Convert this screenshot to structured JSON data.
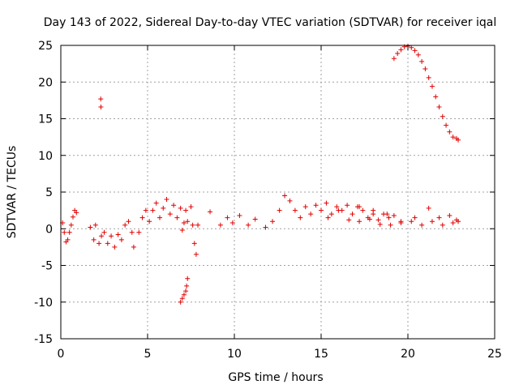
{
  "chart_data": {
    "type": "scatter",
    "title": "Day 143 of 2022, Sidereal Day-to-day VTEC variation (SDTVAR) for receiver iqal",
    "xlabel": "GPS time / hours",
    "ylabel": "SDTVAR / TECUs",
    "xlim": [
      0,
      25
    ],
    "ylim": [
      -15,
      25
    ],
    "xticks": [
      0,
      5,
      10,
      15,
      20,
      25
    ],
    "yticks": [
      -15,
      -10,
      -5,
      0,
      5,
      10,
      15,
      20,
      25
    ],
    "grid": true,
    "marker": "plus",
    "color": "#e00000",
    "series": [
      {
        "name": "SDTVAR",
        "x": [
          0.1,
          0.2,
          0.3,
          0.4,
          0.5,
          0.6,
          0.7,
          0.8,
          0.9,
          1.7,
          1.9,
          2.0,
          2.2,
          2.3,
          2.31,
          2.34,
          2.5,
          2.7,
          2.9,
          3.1,
          3.3,
          3.5,
          3.7,
          3.9,
          4.1,
          4.2,
          4.5,
          4.7,
          4.9,
          5.1,
          5.3,
          5.5,
          5.7,
          5.9,
          6.1,
          6.3,
          6.5,
          6.7,
          6.9,
          7.0,
          7.1,
          7.2,
          7.3,
          7.5,
          7.6,
          7.7,
          7.8,
          7.9,
          6.9,
          7.0,
          7.1,
          7.2,
          7.25,
          7.3,
          8.6,
          9.2,
          9.6,
          9.9,
          10.3,
          10.8,
          11.2,
          11.8,
          12.2,
          12.6,
          12.9,
          13.2,
          13.5,
          13.8,
          14.1,
          14.4,
          14.7,
          15.0,
          15.3,
          15.6,
          15.9,
          16.2,
          16.5,
          16.8,
          17.1,
          17.4,
          17.7,
          18.0,
          18.3,
          18.6,
          18.9,
          19.2,
          15.4,
          16.0,
          16.6,
          17.2,
          17.8,
          18.4,
          19.0,
          19.6,
          20.2,
          20.8,
          21.4,
          22.0,
          22.6,
          22.9,
          17.2,
          18.0,
          18.8,
          19.6,
          20.4,
          21.2,
          21.8,
          22.4,
          22.8,
          19.2,
          19.4,
          19.6,
          19.8,
          20.0,
          20.2,
          20.4,
          20.6,
          20.8,
          21.0,
          21.2,
          21.4,
          21.6,
          21.8,
          22.0,
          22.2,
          22.4,
          22.6,
          22.8,
          22.9
        ],
        "y": [
          0.8,
          -0.5,
          -1.8,
          -1.5,
          -0.5,
          0.5,
          1.6,
          2.5,
          2.2,
          0.2,
          -1.5,
          0.5,
          -2.0,
          17.7,
          16.6,
          -1.0,
          -0.5,
          -2.0,
          -1.0,
          -2.5,
          -0.8,
          -1.5,
          0.5,
          1.0,
          -0.5,
          -2.5,
          -0.5,
          1.5,
          2.5,
          1.0,
          2.5,
          3.5,
          1.5,
          2.8,
          4.0,
          2.0,
          3.2,
          1.5,
          2.8,
          -0.2,
          0.8,
          2.5,
          1.0,
          3.0,
          0.5,
          -2.0,
          -3.5,
          0.5,
          -10.0,
          -9.5,
          -9.0,
          -8.5,
          -7.8,
          -6.8,
          2.3,
          0.5,
          1.5,
          0.8,
          1.8,
          0.5,
          1.3,
          0.2,
          1.0,
          2.5,
          4.5,
          3.8,
          2.5,
          1.5,
          3.0,
          2.0,
          3.2,
          2.5,
          3.5,
          2.0,
          3.0,
          2.5,
          3.2,
          2.0,
          3.0,
          2.5,
          1.5,
          2.0,
          1.2,
          2.0,
          1.5,
          1.8,
          1.5,
          2.5,
          1.2,
          1.0,
          1.3,
          0.6,
          0.5,
          0.8,
          1.0,
          0.5,
          1.0,
          0.5,
          0.8,
          1.0,
          3.0,
          2.5,
          2.0,
          1.0,
          1.5,
          2.8,
          1.5,
          1.8,
          1.2,
          23.2,
          23.9,
          24.4,
          24.8,
          24.9,
          24.7,
          24.3,
          23.7,
          22.8,
          21.8,
          20.6,
          19.4,
          18.0,
          16.6,
          15.3,
          14.1,
          13.2,
          12.5,
          12.3,
          12.1
        ]
      }
    ]
  }
}
